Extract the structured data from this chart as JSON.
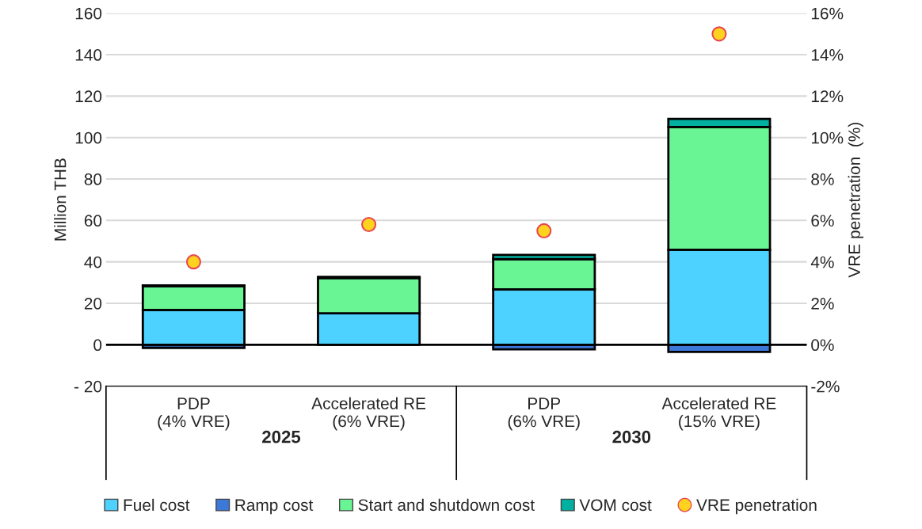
{
  "chart_data": {
    "type": "bar",
    "stacked": true,
    "categories": [
      "PDP\n(4% VRE)",
      "Accelerated RE\n(6% VRE)",
      "PDP\n(6% VRE)",
      "Accelerated RE\n(15% VRE)"
    ],
    "ylabel": "Million THB",
    "y2label": "VRE penetration  (%)",
    "ylim": [
      -20,
      160
    ],
    "yticks": [
      {
        "value": -20,
        "label": "- 20"
      },
      0,
      20,
      40,
      60,
      80,
      100,
      120,
      140,
      160
    ],
    "y2lim": [
      -2,
      16
    ],
    "y2ticks": [
      {
        "value": -2,
        "label": "-2%"
      },
      {
        "value": 0,
        "label": "0%"
      },
      {
        "value": 2,
        "label": "2%"
      },
      {
        "value": 4,
        "label": "4%"
      },
      {
        "value": 6,
        "label": "6%"
      },
      {
        "value": 8,
        "label": "8%"
      },
      {
        "value": 10,
        "label": "10%"
      },
      {
        "value": 12,
        "label": "12%"
      },
      {
        "value": 14,
        "label": "14%"
      },
      {
        "value": 16,
        "label": "16%"
      }
    ],
    "grid": "y",
    "legend": "bottom",
    "annotations": [
      "2025",
      "2030"
    ],
    "series": [
      {
        "name": "Fuel cost",
        "color": "#4dd2ff",
        "values": [
          16.8,
          15.2,
          26.7,
          45.8
        ]
      },
      {
        "name": "Ramp cost",
        "color": "#3c78d8",
        "values": [
          -1.5,
          null,
          -2.2,
          -3.5
        ]
      },
      {
        "name": "Start and shutdown cost",
        "color": "#6af595",
        "values": [
          11.5,
          17.0,
          14.6,
          59.3
        ]
      },
      {
        "name": "VOM cost",
        "color": "#00b0a0",
        "values": [
          0.3,
          0.5,
          2.1,
          3.9
        ]
      },
      {
        "name": "VRE penetration",
        "type": "scatter",
        "axis": "y2",
        "marker": "circle",
        "color": "#ffd21f",
        "values": [
          4.0,
          5.8,
          5.5,
          15.0
        ]
      }
    ]
  }
}
